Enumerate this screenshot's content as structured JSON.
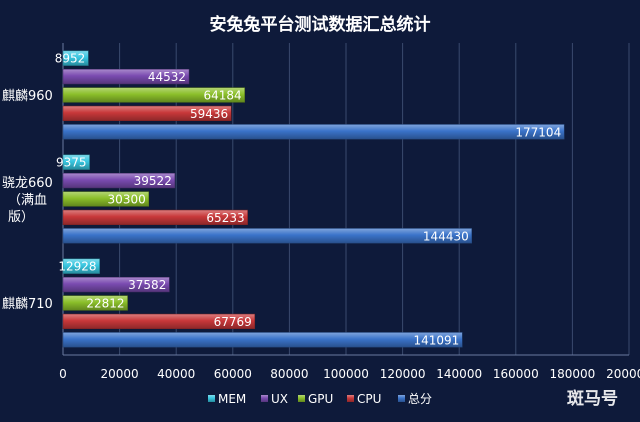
{
  "chart_data": {
    "type": "bar",
    "orientation": "horizontal",
    "title": "安兔兔平台测试数据汇总统计",
    "categories": [
      "麒麟960",
      "骁龙660（满血版）",
      "麒麟710"
    ],
    "category_lines": [
      [
        "麒麟960"
      ],
      [
        "骁龙660",
        "（满血",
        "版）"
      ],
      [
        "麒麟710"
      ]
    ],
    "series": [
      {
        "name": "MEM",
        "color": "#38c6e0",
        "values": [
          8952,
          9375,
          12928
        ]
      },
      {
        "name": "UX",
        "color": "#7a4bb0",
        "values": [
          44532,
          39522,
          37582
        ]
      },
      {
        "name": "GPU",
        "color": "#8bbf2a",
        "values": [
          64184,
          30300,
          22812
        ]
      },
      {
        "name": "CPU",
        "color": "#c8383a",
        "values": [
          59436,
          65233,
          67769
        ]
      },
      {
        "name": "总分",
        "color": "#3a73c9",
        "values": [
          177104,
          144430,
          141091
        ]
      }
    ],
    "xlim": [
      0,
      200000
    ],
    "x_ticks": [
      "0",
      "20000",
      "40000",
      "60000",
      "80000",
      "100000",
      "120000",
      "140000",
      "160000",
      "180000",
      "200000"
    ],
    "grid": true,
    "legend_position": "bottom"
  },
  "watermark": "斑马号"
}
